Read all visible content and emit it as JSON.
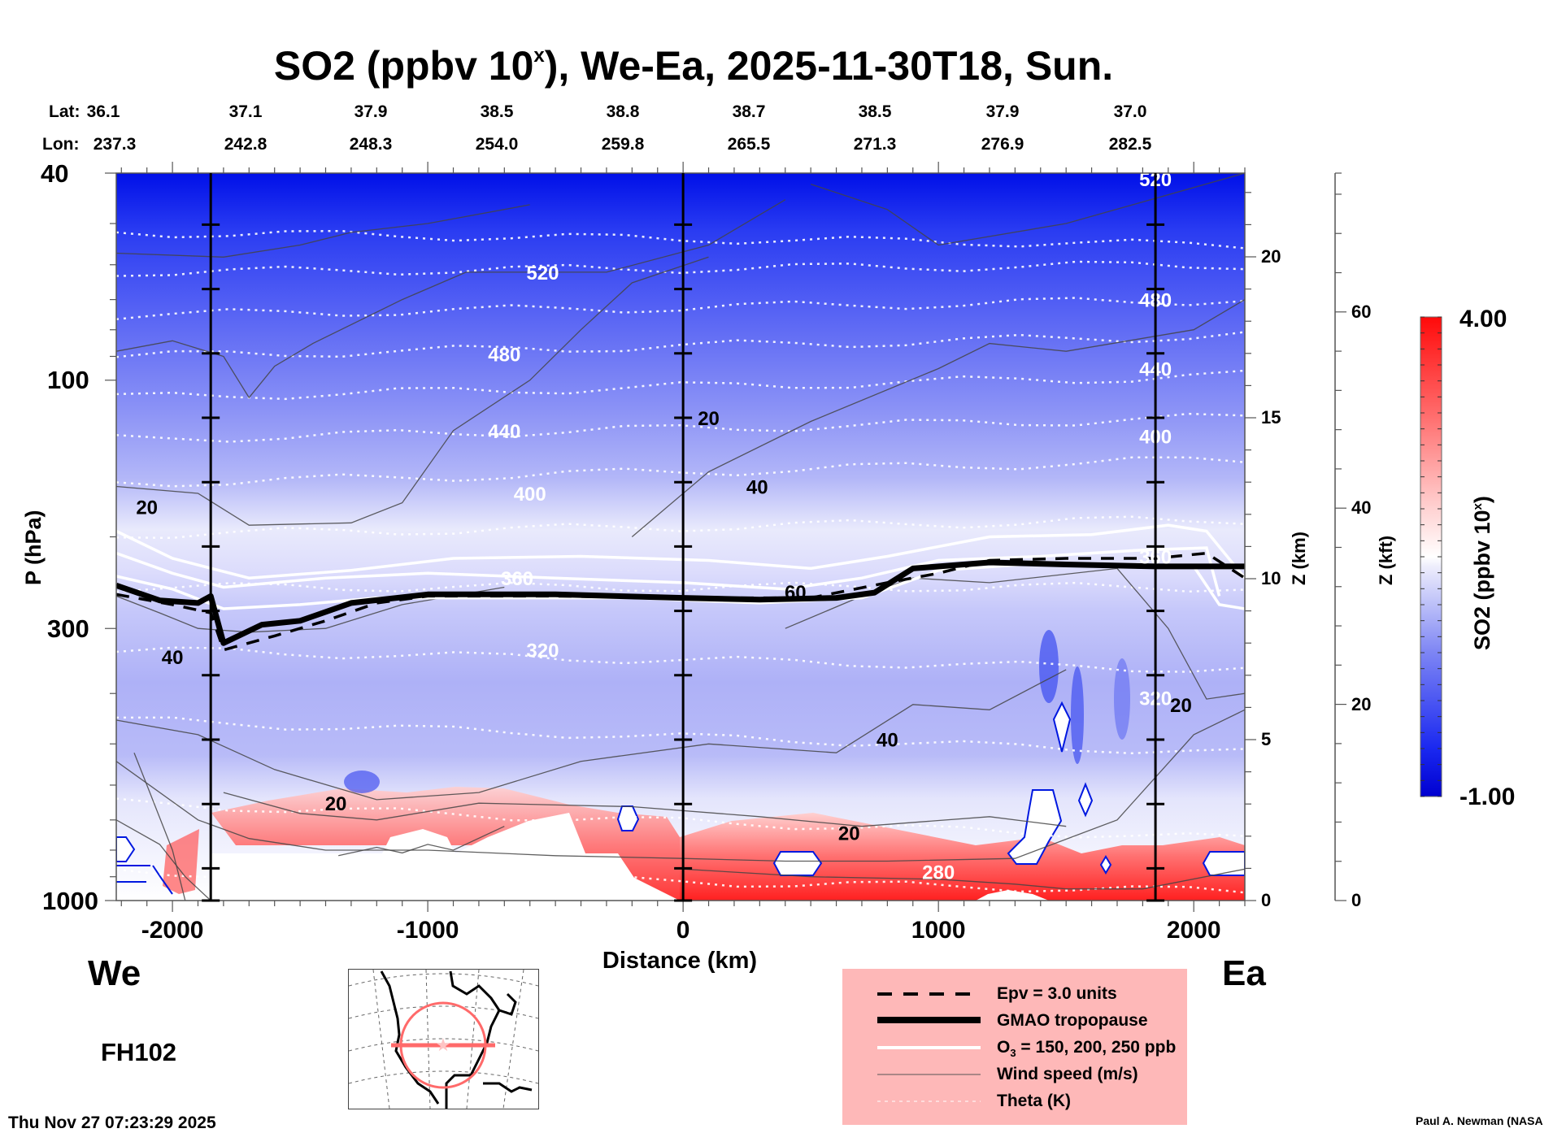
{
  "title": {
    "prefix": "SO2 (ppbv 10",
    "sup": "x",
    "suffix": "), We-Ea, 2025-11-30T18, Sun."
  },
  "coords": {
    "lat_label": "Lat:",
    "lon_label": "Lon:",
    "lat": [
      "36.1",
      "37.1",
      "37.9",
      "38.5",
      "38.8",
      "38.7",
      "38.5",
      "37.9",
      "37.0"
    ],
    "lon": [
      "237.3",
      "242.8",
      "248.3",
      "254.0",
      "259.8",
      "265.5",
      "271.3",
      "276.9",
      "282.5"
    ]
  },
  "direction": {
    "west": "We",
    "east": "Ea"
  },
  "forecast_hour": "FH102",
  "timestamp": "Thu Nov 27 07:23:29 2025",
  "credit": "Paul A. Newman (NASA",
  "legend": {
    "items": [
      {
        "label": "Epv = 3.0 units",
        "style": "dashed-black"
      },
      {
        "label": "GMAO tropopause",
        "style": "thick-black"
      },
      {
        "label_main": "O",
        "label_sub": "3",
        "label_rest": " = 150, 200, 250 ppb",
        "style": "white"
      },
      {
        "label": "Wind speed (m/s)",
        "style": "thin-gray"
      },
      {
        "label": "Theta (K)",
        "style": "dotted-white"
      }
    ]
  },
  "colorbar": {
    "max_label": "4.00",
    "min_label": "-1.00",
    "title_prefix": "SO2 (ppbv 10",
    "title_sup": "x",
    "title_suffix": ")",
    "range": [
      -1.0,
      4.0
    ],
    "colors": {
      "low": "#0000d8",
      "mid": "#ffffff",
      "high": "#ff0000"
    }
  },
  "chart_data": {
    "type": "heatmap",
    "title": "SO2 (ppbv 10^x), We-Ea, 2025-11-30T18, Sun.",
    "xlabel": "Distance (km)",
    "ylabel": "P (hPa)",
    "y2label": "Z (km)",
    "y3label": "Z (kft)",
    "xlim": [
      -2220,
      2200
    ],
    "ylim": [
      1000,
      40
    ],
    "yscale": "log",
    "x_ticks": [
      -2000,
      -1000,
      0,
      1000,
      2000
    ],
    "x_tick_labels": [
      "-2000",
      "-1000",
      "0",
      "1000",
      "2000"
    ],
    "y_ticks": [
      40,
      100,
      300,
      1000
    ],
    "y_tick_labels": [
      "40",
      "100",
      "300",
      "1000"
    ],
    "z_km_ticks": [
      0,
      5,
      10,
      15,
      20
    ],
    "z_kft_ticks": [
      0,
      20,
      40,
      60
    ],
    "reference_lines_km": [
      -1850,
      0,
      1850
    ],
    "colorbar_range": [
      -1.0,
      4.0
    ],
    "so2_field_description": [
      {
        "region": "stratosphere above 100 hPa",
        "value_range": [
          -1.0,
          -0.4
        ]
      },
      {
        "region": "upper troposphere 200-500 hPa",
        "value_range": [
          -0.4,
          0.2
        ]
      },
      {
        "region": "boundary layer 700-1000 hPa, x -1700 to 2000 km",
        "value_range": [
          1.5,
          4.0
        ]
      }
    ],
    "theta_contours_K": [
      {
        "value": 520,
        "label_positions": [
          [
            -550,
            62
          ],
          [
            1850,
            41
          ]
        ]
      },
      {
        "value": 480,
        "label_positions": [
          [
            -700,
            89
          ],
          [
            1850,
            70
          ]
        ]
      },
      {
        "value": 440,
        "label_positions": [
          [
            -700,
            125
          ],
          [
            1850,
            95
          ]
        ]
      },
      {
        "value": 400,
        "label_positions": [
          [
            -600,
            165
          ],
          [
            1850,
            128
          ]
        ]
      },
      {
        "value": 360,
        "label_positions": [
          [
            -650,
            240
          ],
          [
            1850,
            218
          ]
        ]
      },
      {
        "value": 320,
        "label_positions": [
          [
            -550,
            330
          ],
          [
            1850,
            408
          ]
        ]
      },
      {
        "value": 280,
        "label_positions": [
          [
            1000,
            880
          ]
        ]
      }
    ],
    "wind_speed_contours_ms": [
      {
        "value": 20,
        "label_positions": [
          [
            -2100,
            175
          ],
          [
            100,
            118
          ],
          [
            -1360,
            650
          ],
          [
            650,
            740
          ],
          [
            1950,
            420
          ]
        ]
      },
      {
        "value": 40,
        "label_positions": [
          [
            -2000,
            340
          ],
          [
            800,
            490
          ],
          [
            290,
            160
          ]
        ]
      },
      {
        "value": 60,
        "label_positions": [
          [
            440,
            255
          ]
        ]
      }
    ],
    "tropopause_hPa": {
      "x": [
        -2220,
        -2050,
        -1900,
        -1850,
        -1800,
        -1650,
        -1500,
        -1300,
        -1000,
        -500,
        0,
        300,
        600,
        750,
        900,
        1200,
        1500,
        1850,
        2200
      ],
      "p": [
        248,
        265,
        268,
        260,
        320,
        295,
        290,
        268,
        258,
        258,
        262,
        264,
        262,
        256,
        230,
        224,
        226,
        228,
        228
      ]
    },
    "epv_3_hPa": {
      "x": [
        -2220,
        -2000,
        -1850,
        -1800,
        -1600,
        -1400,
        -1200,
        -1000,
        -500,
        0,
        500,
        800,
        1000,
        1200,
        1500,
        1850,
        2050,
        2200
      ],
      "p": [
        258,
        270,
        280,
        330,
        310,
        290,
        268,
        260,
        260,
        262,
        262,
        245,
        235,
        222,
        220,
        220,
        215,
        240
      ]
    }
  }
}
